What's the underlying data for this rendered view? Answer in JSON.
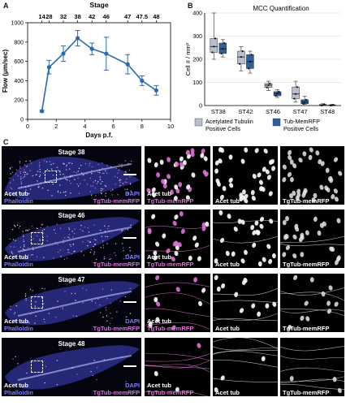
{
  "panels": {
    "a": "A",
    "b": "B",
    "c": "C"
  },
  "chart_a": {
    "type": "line",
    "title": "Stage",
    "top_ticks": [
      "14",
      "28",
      "32",
      "38",
      "42",
      "46",
      "47",
      "47.5",
      "48"
    ],
    "xlabel": "Days p.f.",
    "ylabel": "Flow (μm/sec)",
    "x_ticks": [
      "0",
      "2",
      "4",
      "6",
      "8",
      "10"
    ],
    "y_ticks": [
      "0",
      "200",
      "400",
      "600",
      "800",
      "1000"
    ],
    "xlim": [
      0,
      10
    ],
    "ylim": [
      0,
      1000
    ],
    "color": "#2a6bb0",
    "x": [
      1,
      1.5,
      2.5,
      3.5,
      4.5,
      5.5,
      7,
      8,
      9
    ],
    "y": [
      85,
      540,
      680,
      840,
      730,
      680,
      570,
      400,
      300
    ],
    "err": [
      10,
      70,
      80,
      80,
      60,
      170,
      100,
      50,
      50
    ]
  },
  "chart_b": {
    "type": "box",
    "title": "MCC Quantification",
    "ylabel": "Cell # / mm²",
    "y_ticks": [
      "0",
      "100",
      "200",
      "300",
      "400"
    ],
    "ylim": [
      0,
      400
    ],
    "categories": [
      "ST38",
      "ST42",
      "ST46",
      "ST47",
      "ST48"
    ],
    "series": [
      {
        "name": "Acetylated Tubulin Positive Cells",
        "color": "#b9bfcc",
        "boxes": [
          [
            200,
            230,
            255,
            290,
            400
          ],
          [
            150,
            180,
            210,
            235,
            255
          ],
          [
            65,
            78,
            88,
            95,
            105
          ],
          [
            15,
            30,
            50,
            80,
            105
          ],
          [
            0,
            0,
            2,
            5,
            8
          ]
        ]
      },
      {
        "name": "Tub-MemRFP Positive Cells",
        "color": "#2f5f96",
        "boxes": [
          [
            210,
            225,
            245,
            270,
            285
          ],
          [
            140,
            160,
            190,
            220,
            235
          ],
          [
            35,
            42,
            52,
            60,
            68
          ],
          [
            5,
            8,
            15,
            25,
            40
          ],
          [
            0,
            0,
            1,
            3,
            5
          ]
        ]
      }
    ],
    "legend": [
      {
        "line1": "Acetylated Tubulin",
        "line2": "Positive Cells"
      },
      {
        "line1": "Tub-MemRFP",
        "line2": "Positive Cells"
      }
    ]
  },
  "micro_rows": [
    {
      "stage": "Stage 38",
      "left_labels": [
        "Acet tub",
        "Phalloidin"
      ],
      "right_labels": [
        "DAPI",
        "TgTub-memRFP"
      ],
      "col1": [
        "Acet tub",
        "TgTub-memRFP"
      ],
      "col2": "Acet tub",
      "col3": "TgTub-memRFP",
      "density": 1.0
    },
    {
      "stage": "Stage 46",
      "left_labels": [
        "Acet tub",
        "Phalloidin"
      ],
      "right_labels": [
        "DAPI",
        "TgTub-memRFP"
      ],
      "col1": [
        "Acet tub",
        "TgTub-memRFP"
      ],
      "col2": "Acet tub",
      "col3": "TgTub-memRFP",
      "density": 0.7
    },
    {
      "stage": "Stage 47",
      "left_labels": [
        "Acet tub",
        "Phalloidin"
      ],
      "right_labels": [
        "DAPI",
        "TgTub-memRFP"
      ],
      "col1": [
        "Acet tub",
        "TgTub-memRFP"
      ],
      "col2": "Acet tub",
      "col3": "TgTub-memRFP",
      "density": 0.3
    },
    {
      "stage": "Stage 48",
      "left_labels": [
        "Acet tub",
        "Phalloidin"
      ],
      "right_labels": [
        "DAPI",
        "TgTub-memRFP"
      ],
      "col1": [
        "Acet tub",
        "TgTub-memRFP"
      ],
      "col2": "Acet tub",
      "col3": "TgTub-memRFP",
      "density": 0.08
    }
  ],
  "colors": {
    "magenta": "#e070d8",
    "blue_label": "#7d7dff",
    "white": "#ffffff"
  }
}
